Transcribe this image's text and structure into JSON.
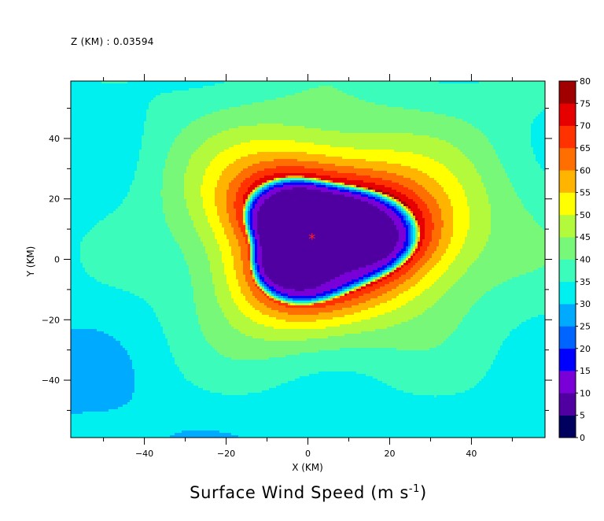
{
  "header": {
    "level_label": "Z (KM) :",
    "level_value": "0.03594"
  },
  "chart_data": {
    "type": "heatmap",
    "title": "Surface Wind Speed (m s",
    "title_exponent": "-1",
    "title_close": ")",
    "xlabel": "X (KM)",
    "ylabel": "Y (KM)",
    "xlim": [
      -58,
      58
    ],
    "ylim": [
      -59,
      59
    ],
    "xticks": [
      -40,
      -20,
      0,
      20,
      40
    ],
    "yticks": [
      -40,
      -20,
      0,
      20,
      40
    ],
    "xtick_labels": [
      "−40",
      "−20",
      "0",
      "20",
      "40"
    ],
    "ytick_labels": [
      "−40",
      "−20",
      "0",
      "20",
      "40"
    ],
    "colorbar": {
      "levels": [
        0,
        5,
        10,
        15,
        20,
        25,
        30,
        35,
        40,
        45,
        50,
        55,
        60,
        65,
        70,
        75,
        80
      ],
      "level_labels": [
        "0",
        "5",
        "10",
        "15",
        "20",
        "25",
        "30",
        "35",
        "40",
        "45",
        "50",
        "55",
        "60",
        "65",
        "70",
        "75",
        "80"
      ],
      "colors": [
        "#00005f",
        "#5000a0",
        "#7a00d8",
        "#0000ff",
        "#0064ff",
        "#00aaff",
        "#00f0f0",
        "#3cfcbc",
        "#78f878",
        "#b4fa3c",
        "#ffff00",
        "#ffb400",
        "#ff6e00",
        "#ff3200",
        "#e60000",
        "#a00000"
      ]
    },
    "storm_center": {
      "x": 1,
      "y": 7,
      "marker": "*"
    },
    "fields": {
      "background_speed": 32,
      "peak_speed": 72,
      "eye_radius_km": 21,
      "center_speed": 3
    }
  }
}
